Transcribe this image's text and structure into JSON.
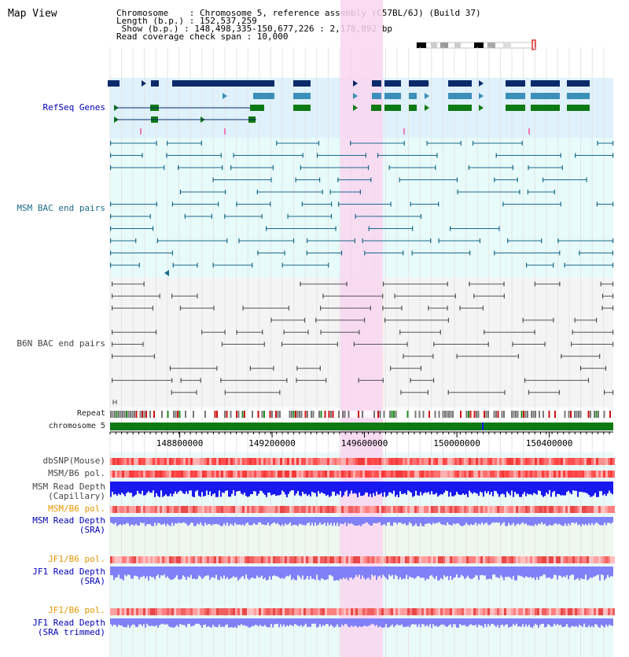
{
  "map_title": "Map View",
  "info": {
    "chromosome": "Chromosome    : Chromosome 5, reference assembly (C57BL/6J) (Build 37)",
    "length": "Length (b.p.) : 152,537,259",
    "show": " Show (b.p.) : 148,498,335-150,677,226 : 2,178,892 bp",
    "coverage": "Read coverage check span : 10,000"
  },
  "tracks": {
    "refseq": "RefSeq Genes",
    "msm_bac": "MSM BAC end pairs",
    "b6n_bac": "B6N BAC end pairs",
    "repeat": "Repeat",
    "chromosome": "chromosome 5",
    "dbsnp": "dbSNP(Mouse)",
    "msm_b6_pol": "MSM/B6 pol.",
    "msm_depth_cap": "MSM Read Depth\n(Capillary)",
    "msm_b6_pol2": "MSM/B6 pol.",
    "msm_depth_sra": "MSM Read Depth\n(SRA)",
    "jf1_b6_pol": "JF1/B6 pol.",
    "jf1_depth_sra": "JF1 Read Depth\n(SRA)",
    "jf1_b6_pol2": "JF1/B6 pol.",
    "jf1_depth_trim": "JF1 Read Depth\n(SRA trimmed)"
  },
  "axis_ticks": [
    {
      "label": "148800000",
      "pos": 148800000
    },
    {
      "label": "149200000",
      "pos": 149200000
    },
    {
      "label": "149600000",
      "pos": 149600000
    },
    {
      "label": "150000000",
      "pos": 150000000
    },
    {
      "label": "150400000",
      "pos": 150400000
    }
  ],
  "colors": {
    "refseq_bg": "#dff1fb",
    "msm_bg": "#e6fbfa",
    "b6n_bg": "#f4f4f4",
    "highlight": "#f9d6f0",
    "gene_dark": "#0a2a6a",
    "gene_mid": "#3b8fb8",
    "gene_green": "#0d7a14",
    "msm_line": "#1c6a8c",
    "b6n_line": "#555555",
    "chrom_green": "#0d7a14",
    "snp_red": "#ff6060",
    "depth_blue": "#1818f0",
    "depth_light": "#8080f8"
  }
}
